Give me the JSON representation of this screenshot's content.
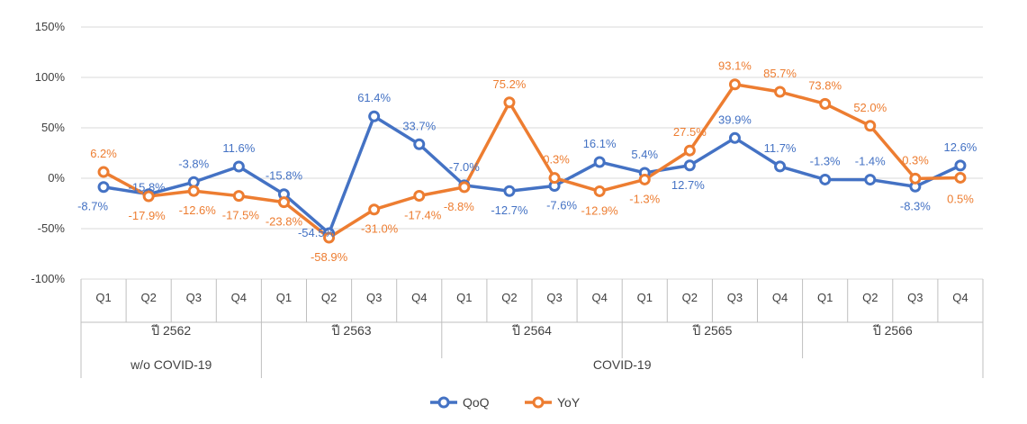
{
  "chart_data": {
    "type": "line",
    "categories": [
      "Q1",
      "Q2",
      "Q3",
      "Q4",
      "Q1",
      "Q2",
      "Q3",
      "Q4",
      "Q1",
      "Q2",
      "Q3",
      "Q4",
      "Q1",
      "Q2",
      "Q3",
      "Q4",
      "Q1",
      "Q2",
      "Q3",
      "Q4"
    ],
    "year_groups": [
      {
        "label": "ปี 2562",
        "start": 0,
        "end": 3
      },
      {
        "label": "ปี 2563",
        "start": 4,
        "end": 7
      },
      {
        "label": "ปี 2564",
        "start": 8,
        "end": 11
      },
      {
        "label": "ปี 2565",
        "start": 12,
        "end": 15
      },
      {
        "label": "ปี 2566",
        "start": 16,
        "end": 19
      }
    ],
    "period_groups": [
      {
        "label": "w/o COVID-19",
        "start": 0,
        "end": 3
      },
      {
        "label": "COVID-19",
        "start": 4,
        "end": 19
      }
    ],
    "y_ticks": [
      150,
      100,
      50,
      0,
      -50,
      -100
    ],
    "y_tick_labels": [
      "150%",
      "100%",
      "50%",
      "0%",
      "-50%",
      "-100%"
    ],
    "ylim": [
      -100,
      150
    ],
    "grid": true,
    "legend_position": "bottom",
    "series": [
      {
        "name": "QoQ",
        "color": "#4472C4",
        "values": [
          -8.7,
          -15.8,
          -3.8,
          11.6,
          -15.8,
          -54.5,
          61.4,
          33.7,
          -7.0,
          -12.7,
          -7.6,
          16.1,
          5.4,
          12.7,
          39.9,
          11.7,
          -1.3,
          -1.4,
          -8.3,
          12.6
        ],
        "labels": [
          "-8.7%",
          "-15.8%",
          "-3.8%",
          "11.6%",
          "-15.8%",
          "-54.5%",
          "61.4%",
          "33.7%",
          "-7.0%",
          "-12.7%",
          "-7.6%",
          "16.1%",
          "5.4%",
          "12.7%",
          "39.9%",
          "11.7%",
          "-1.3%",
          "-1.4%",
          "-8.3%",
          "12.6%"
        ]
      },
      {
        "name": "YoY",
        "color": "#ED7D31",
        "values": [
          6.2,
          -17.9,
          -12.6,
          -17.5,
          -23.8,
          -58.9,
          -31.0,
          -17.4,
          -8.8,
          75.2,
          0.3,
          -12.9,
          -1.3,
          27.5,
          93.1,
          85.7,
          73.8,
          52.0,
          -0.3,
          0.5
        ],
        "labels": [
          "6.2%",
          "-17.9%",
          "-12.6%",
          "-17.5%",
          "-23.8%",
          "-58.9%",
          "-31.0%",
          "-17.4%",
          "-8.8%",
          "75.2%",
          "0.3%",
          "-12.9%",
          "-1.3%",
          "27.5%",
          "93.1%",
          "85.7%",
          "73.8%",
          "52.0%",
          "-0.3%",
          "0.5%"
        ]
      }
    ]
  }
}
